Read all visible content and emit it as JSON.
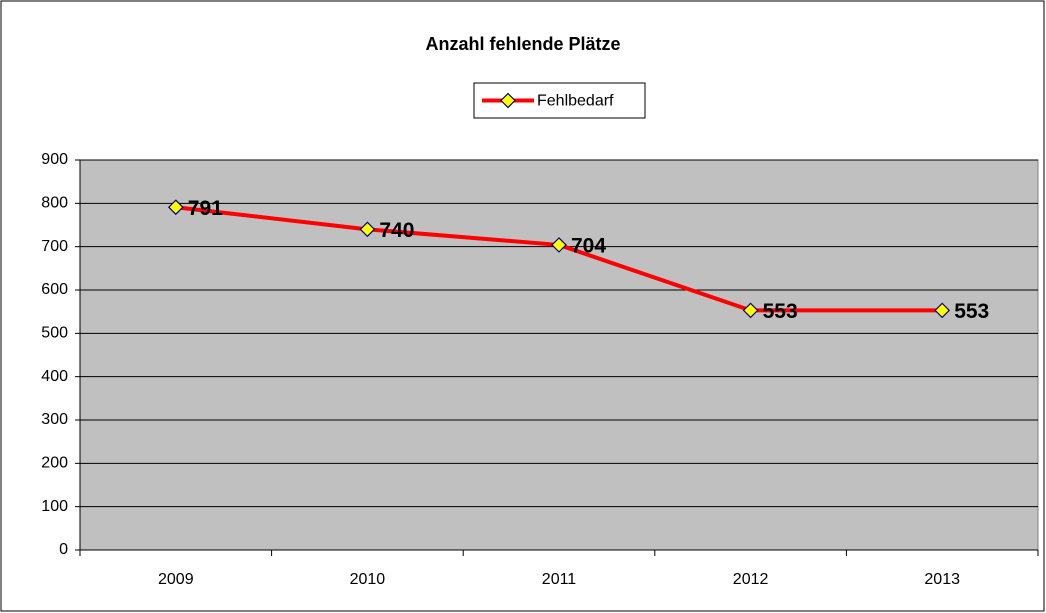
{
  "chart_data": {
    "type": "line",
    "title": "Anzahl fehlende Plätze",
    "categories": [
      "2009",
      "2010",
      "2011",
      "2012",
      "2013"
    ],
    "series": [
      {
        "name": "Fehlbedarf",
        "color": "#ff0000",
        "marker_color": "#ffff00",
        "values": [
          791,
          740,
          704,
          553,
          553
        ]
      }
    ],
    "ylim": [
      0,
      900
    ],
    "yticks": [
      0,
      100,
      200,
      300,
      400,
      500,
      600,
      700,
      800,
      900
    ],
    "grid": true,
    "legend": "top",
    "plot_background": "#c0c0c0"
  }
}
